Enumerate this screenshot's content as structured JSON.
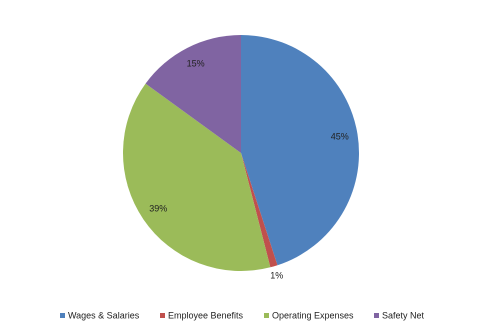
{
  "chart_data": {
    "type": "pie",
    "categories": [
      "Wages & Salaries",
      "Employee Benefits",
      "Operating Expenses",
      "Safety Net"
    ],
    "values": [
      45,
      1,
      39,
      15
    ],
    "value_labels": [
      "45%",
      "1%",
      "39%",
      "15%"
    ],
    "colors": [
      "#4f81bd",
      "#c0504d",
      "#9bbb59",
      "#8064a2"
    ],
    "legend": "bottom"
  }
}
